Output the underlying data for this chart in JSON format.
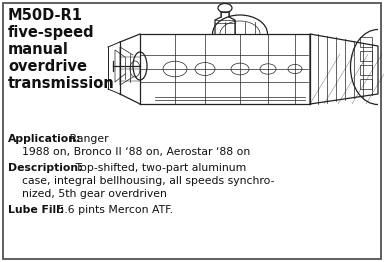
{
  "title_lines": [
    "M50D-R1",
    "five-speed",
    "manual",
    "overdrive",
    "transmission"
  ],
  "app_label": "Application:",
  "app_text1": " Ranger",
  "app_text2": "    1988 on, Bronco II ‘88 on, Aerostar ‘88 on",
  "desc_label": "Description:",
  "desc_text1": " Top-shifted, two-part aluminum",
  "desc_text2": "    case, integral bellhousing, all speeds synchro-",
  "desc_text3": "    nized, 5th gear overdriven",
  "lube_label": "Lube Fill:",
  "lube_text": " 5.6 pints Mercon ATF.",
  "bg_color": "#ffffff",
  "border_color": "#444444",
  "text_color": "#111111",
  "illus_color": "#222222",
  "title_fontsize": 10.5,
  "body_fontsize": 7.8
}
